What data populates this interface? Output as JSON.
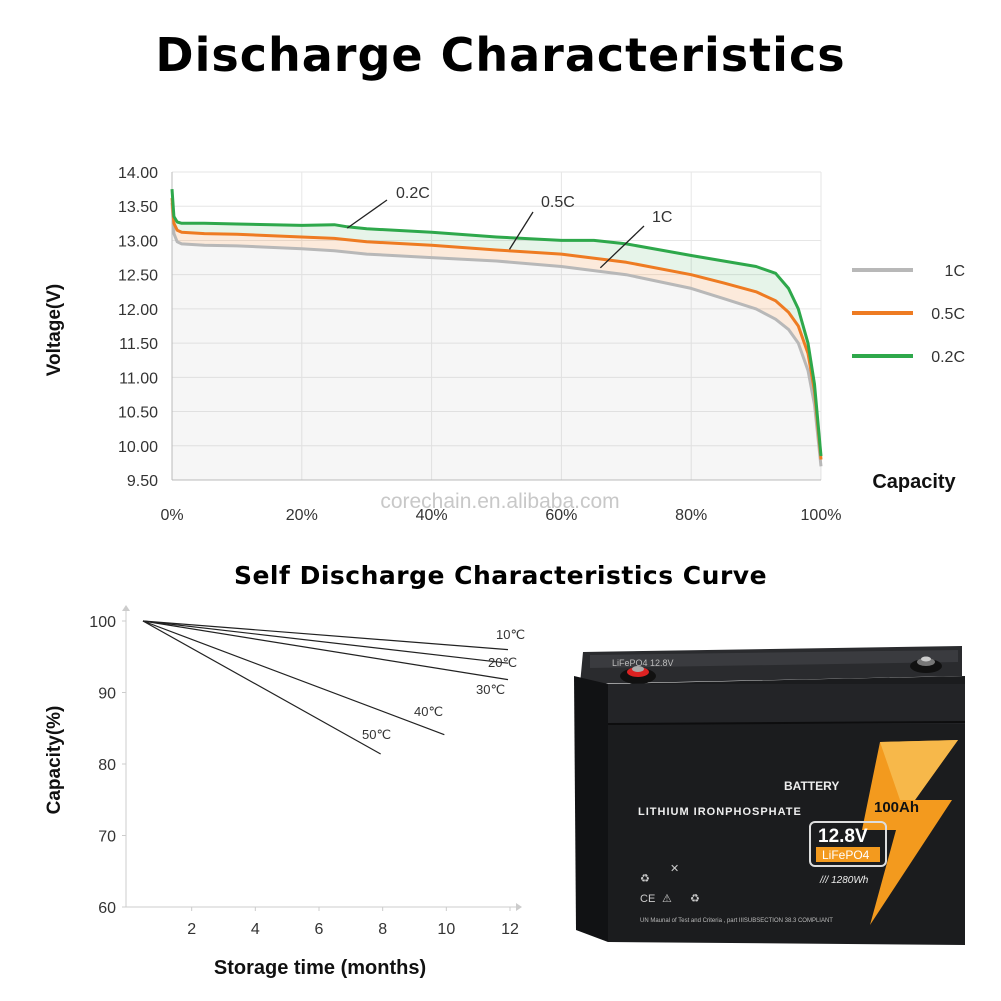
{
  "title": "Discharge Characteristics",
  "subtitle": "Self Discharge Characteristics Curve",
  "watermark": "corechain.en.alibaba.com",
  "chart_data": [
    {
      "type": "line",
      "title": "Discharge Characteristics",
      "xlabel": "Capacity",
      "ylabel": "Voltage(V)",
      "xlim": [
        0,
        100
      ],
      "ylim": [
        9.5,
        14.0
      ],
      "x_ticks": [
        "0%",
        "20%",
        "40%",
        "60%",
        "80%",
        "100%"
      ],
      "y_ticks": [
        "14.00",
        "13.50",
        "13.00",
        "12.50",
        "12.00",
        "11.50",
        "11.00",
        "10.50",
        "10.00",
        "9.50"
      ],
      "grid": true,
      "legend": "right",
      "series": [
        {
          "name": "1C",
          "color": "#b8b8b8",
          "x": [
            0,
            0.3,
            0.8,
            1.5,
            5,
            10,
            20,
            25,
            30,
            40,
            50,
            60,
            70,
            80,
            85,
            90,
            93,
            95,
            96.5,
            98,
            99,
            100
          ],
          "y": [
            13.55,
            13.1,
            12.98,
            12.95,
            12.93,
            12.92,
            12.88,
            12.85,
            12.8,
            12.75,
            12.7,
            12.62,
            12.5,
            12.3,
            12.15,
            12.0,
            11.85,
            11.7,
            11.5,
            11.1,
            10.6,
            9.7
          ]
        },
        {
          "name": "0.5C",
          "color": "#ee7b22",
          "x": [
            0,
            0.3,
            0.8,
            1.5,
            5,
            10,
            20,
            25,
            30,
            40,
            50,
            60,
            70,
            80,
            85,
            90,
            93,
            95,
            96.5,
            98,
            99,
            100
          ],
          "y": [
            13.62,
            13.25,
            13.15,
            13.12,
            13.1,
            13.09,
            13.05,
            13.03,
            12.98,
            12.93,
            12.86,
            12.8,
            12.68,
            12.5,
            12.38,
            12.25,
            12.12,
            11.95,
            11.75,
            11.35,
            10.8,
            9.8
          ]
        },
        {
          "name": "0.2C",
          "color": "#2ea84b",
          "x": [
            0,
            0.3,
            0.8,
            1.5,
            5,
            10,
            20,
            25,
            27,
            30,
            40,
            50,
            60,
            65,
            70,
            80,
            85,
            90,
            93,
            95,
            96.5,
            98,
            99,
            100
          ],
          "y": [
            13.75,
            13.35,
            13.27,
            13.25,
            13.25,
            13.24,
            13.22,
            13.23,
            13.2,
            13.17,
            13.12,
            13.05,
            13.0,
            13.0,
            12.95,
            12.78,
            12.7,
            12.62,
            12.52,
            12.3,
            12.0,
            11.5,
            10.9,
            9.85
          ]
        }
      ],
      "annotations": [
        "0.2C",
        "0.5C",
        "1C"
      ]
    },
    {
      "type": "line",
      "title": "Self Discharge Characteristics Curve",
      "xlabel": "Storage time (months)",
      "ylabel": "Capacity(%)",
      "xlim": [
        0,
        12
      ],
      "ylim": [
        60,
        100
      ],
      "x_ticks": [
        "2",
        "4",
        "6",
        "8",
        "10",
        "12"
      ],
      "y_ticks": [
        "100",
        "90",
        "80",
        "70",
        "60"
      ],
      "series": [
        {
          "name": "10℃",
          "x": [
            0,
            12
          ],
          "y": [
            100,
            96
          ]
        },
        {
          "name": "20℃",
          "x": [
            0,
            12
          ],
          "y": [
            100,
            94.1
          ]
        },
        {
          "name": "30℃",
          "x": [
            0,
            12
          ],
          "y": [
            100,
            91.8
          ]
        },
        {
          "name": "40℃",
          "x": [
            0,
            10
          ],
          "y": [
            100,
            84.1
          ]
        },
        {
          "name": "50℃",
          "x": [
            0,
            8
          ],
          "y": [
            100,
            81.4
          ]
        }
      ]
    }
  ],
  "battery": {
    "label_battery": "BATTERY",
    "label_chem": "LITHIUM IRONPHOSPHATE",
    "capacity": "100Ah",
    "voltage": "12.8V",
    "type": "LiFePO4",
    "energy": "/// 1280Wh",
    "compliance": "UN Maunal of Test and Criteria , part IIISUBSECTION 38.3 COMPLIANT",
    "top_label": "LiFePO4 12.8V",
    "body_color": "#1b1c1e",
    "bolt_color": "#f39a1e"
  }
}
